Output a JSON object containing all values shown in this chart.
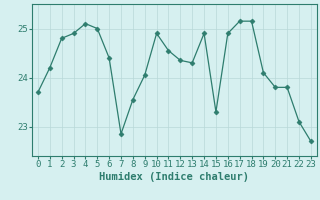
{
  "x": [
    0,
    1,
    2,
    3,
    4,
    5,
    6,
    7,
    8,
    9,
    10,
    11,
    12,
    13,
    14,
    15,
    16,
    17,
    18,
    19,
    20,
    21,
    22,
    23
  ],
  "y": [
    23.7,
    24.2,
    24.8,
    24.9,
    25.1,
    25.0,
    24.4,
    22.85,
    23.55,
    24.05,
    24.9,
    24.55,
    24.35,
    24.3,
    24.9,
    23.3,
    24.9,
    25.15,
    25.15,
    24.1,
    23.8,
    23.8,
    23.1,
    22.7
  ],
  "line_color": "#2e7d6e",
  "marker": "D",
  "marker_size": 2.5,
  "bg_color": "#d6f0f0",
  "grid_color": "#b8d8d8",
  "xlabel": "Humidex (Indice chaleur)",
  "yticks": [
    23,
    24,
    25
  ],
  "xticks": [
    0,
    1,
    2,
    3,
    4,
    5,
    6,
    7,
    8,
    9,
    10,
    11,
    12,
    13,
    14,
    15,
    16,
    17,
    18,
    19,
    20,
    21,
    22,
    23
  ],
  "ylim": [
    22.4,
    25.5
  ],
  "xlim": [
    -0.5,
    23.5
  ],
  "axis_color": "#2e7d6e",
  "tick_color": "#2e7d6e",
  "label_fontsize": 7.5,
  "tick_fontsize": 6.5,
  "linewidth": 0.9
}
